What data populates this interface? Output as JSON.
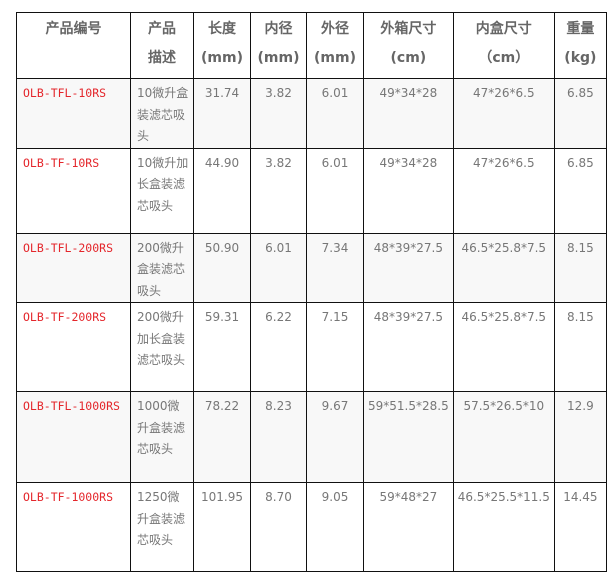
{
  "headers": [
    [
      "产品编号",
      ""
    ],
    [
      "产品",
      "描述"
    ],
    [
      "长度",
      "(mm)"
    ],
    [
      "内径",
      "(mm)"
    ],
    [
      "外径",
      "(mm)"
    ],
    [
      "外箱尺寸",
      "(cm)"
    ],
    [
      "内盒尺寸",
      "（cm）"
    ],
    [
      "重量",
      "(kg)"
    ]
  ],
  "colors": {
    "code": "#e4262b",
    "text": "#777777",
    "shade": "#f8f8f8"
  },
  "rows": [
    {
      "code": "OLB-TFL-10RS",
      "desc": "10微升盒装滤芯吸头",
      "length": "31.74",
      "inner": "3.82",
      "outer": "6.01",
      "carton": "49*34*28",
      "box": "47*26*6.5",
      "weight": "6.85"
    },
    {
      "code": "OLB-TF-10RS",
      "desc": "10微升加长盒装滤芯吸头",
      "length": "44.90",
      "inner": "3.82",
      "outer": "6.01",
      "carton": "49*34*28",
      "box": "47*26*6.5",
      "weight": "6.85"
    },
    {
      "code": "OLB-TFL-200RS",
      "desc": "200微升盒装滤芯吸头",
      "length": "50.90",
      "inner": "6.01",
      "outer": "7.34",
      "carton": "48*39*27.5",
      "box": "46.5*25.8*7.5",
      "weight": "8.15"
    },
    {
      "code": "OLB-TF-200RS",
      "desc": "200微升加长盒装滤芯吸头",
      "length": "59.31",
      "inner": "6.22",
      "outer": "7.15",
      "carton": "48*39*27.5",
      "box": "46.5*25.8*7.5",
      "weight": "8.15"
    },
    {
      "code": "OLB-TFL-1000RS",
      "desc": "1000微升盒装滤芯吸头",
      "length": "78.22",
      "inner": "8.23",
      "outer": "9.67",
      "carton": "59*51.5*28.5",
      "box": "57.5*26.5*10",
      "weight": "12.9"
    },
    {
      "code": "OLB-TF-1000RS",
      "desc": "1250微升盒装滤芯吸头",
      "length": "101.95",
      "inner": "8.70",
      "outer": "9.05",
      "carton": "59*48*27",
      "box": "46.5*25.5*11.5",
      "weight": "14.45"
    }
  ]
}
